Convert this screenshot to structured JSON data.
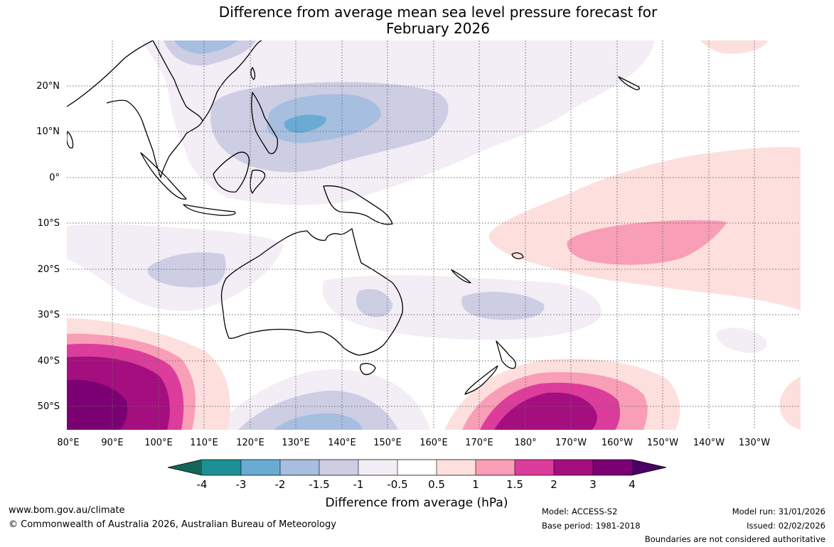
{
  "title": {
    "line1": "Difference from average mean sea level pressure forecast for",
    "line2": "February 2026"
  },
  "map": {
    "lon_labels": [
      "80°E",
      "90°E",
      "100°E",
      "110°E",
      "120°E",
      "130°E",
      "140°E",
      "150°E",
      "160°E",
      "170°E",
      "180°",
      "170°W",
      "160°W",
      "150°W",
      "140°W",
      "130°W"
    ],
    "lat_labels": [
      "20°N",
      "10°N",
      "0°",
      "10°S",
      "20°S",
      "30°S",
      "40°S",
      "50°S"
    ],
    "lon_range_deg_east": [
      80,
      240
    ],
    "lat_range_deg": [
      -55,
      30
    ]
  },
  "colorbar": {
    "tick_labels": [
      "-4",
      "-3",
      "-2",
      "-1.5",
      "-1",
      "-0.5",
      "0.5",
      "1",
      "1.5",
      "2",
      "3",
      "4"
    ],
    "bin_colors": [
      "#15645a",
      "#1d9096",
      "#69abd3",
      "#a6bedf",
      "#cdcde4",
      "#f3edf5",
      "#ffffff",
      "#fde0de",
      "#f89eb6",
      "#dc3c9c",
      "#a50e7f",
      "#7b0073",
      "#4a0066"
    ],
    "label": "Difference from average (hPa)"
  },
  "footer": {
    "website": "www.bom.gov.au/climate",
    "copyright": "© Commonwealth of Australia 2026, Australian Bureau of Meteorology",
    "model": "Model: ACCESS-S2",
    "base_period": "Base period: 1981-2018",
    "model_run": "Model run: 31/01/2026",
    "issued": "Issued: 02/02/2026",
    "disclaimer": "Boundaries are not considered authoritative"
  }
}
